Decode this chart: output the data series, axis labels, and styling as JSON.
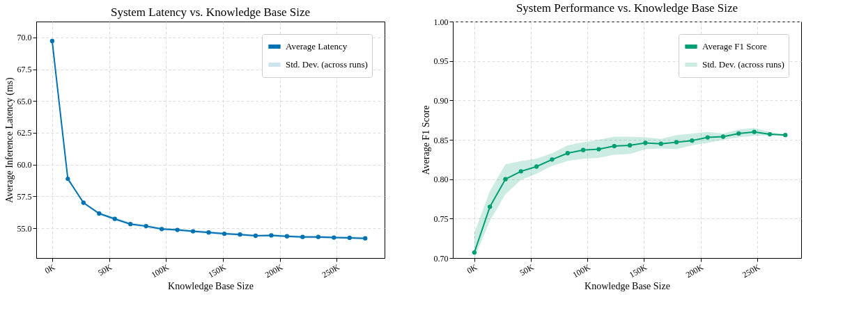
{
  "chart_data": [
    {
      "type": "line",
      "title": "System Latency vs. Knowledge Base Size",
      "xlabel": "Knowledge Base Size",
      "ylabel": "Average Inference Latency (ms)",
      "x": [
        0,
        13750,
        27500,
        41250,
        55000,
        68750,
        82500,
        96250,
        110000,
        123750,
        137500,
        151250,
        165000,
        178750,
        192500,
        206250,
        220000,
        233750,
        247500,
        261250,
        275000
      ],
      "series": [
        {
          "name": "Average Latency",
          "color": "#0072b2",
          "values": [
            69.72,
            58.88,
            57.0,
            56.15,
            55.73,
            55.32,
            55.16,
            54.93,
            54.86,
            54.75,
            54.66,
            54.56,
            54.5,
            54.4,
            54.43,
            54.36,
            54.31,
            54.31,
            54.26,
            54.24,
            54.2
          ],
          "lower": [
            69.65,
            58.8,
            56.9,
            56.05,
            55.6,
            55.22,
            55.05,
            54.83,
            54.76,
            54.65,
            54.55,
            54.46,
            54.4,
            54.32,
            54.33,
            54.27,
            54.2,
            54.21,
            54.15,
            54.14,
            54.08
          ],
          "upper": [
            69.79,
            58.96,
            57.1,
            56.25,
            55.86,
            55.42,
            55.27,
            55.03,
            54.96,
            54.85,
            54.77,
            54.66,
            54.6,
            54.48,
            54.53,
            54.45,
            54.42,
            54.41,
            54.37,
            54.34,
            54.32
          ]
        }
      ],
      "xlim": [
        -14000,
        292000
      ],
      "ylim": [
        52.65,
        71.25
      ],
      "xticks": [
        {
          "value": 0,
          "label": "0K"
        },
        {
          "value": 50000,
          "label": "50K"
        },
        {
          "value": 100000,
          "label": "100K"
        },
        {
          "value": 150000,
          "label": "150K"
        },
        {
          "value": 200000,
          "label": "200K"
        },
        {
          "value": 250000,
          "label": "250K"
        }
      ],
      "yticks": [
        {
          "value": 55,
          "label": "55.0"
        },
        {
          "value": 57.5,
          "label": "57.5"
        },
        {
          "value": 60,
          "label": "60.0"
        },
        {
          "value": 62.5,
          "label": "62.5"
        },
        {
          "value": 65,
          "label": "65.0"
        },
        {
          "value": 67.5,
          "label": "67.5"
        },
        {
          "value": 70,
          "label": "70.0"
        }
      ],
      "annotations": [
        "Std. Dev. (across runs)"
      ],
      "grid": true,
      "legend": "top right",
      "marker": "circle",
      "line_style": "solid"
    },
    {
      "type": "line",
      "title": "System Performance vs. Knowledge Base Size",
      "xlabel": "Knowledge Base Size",
      "ylabel": "Average F1 Score",
      "x": [
        0,
        13750,
        27500,
        41250,
        55000,
        68750,
        82500,
        96250,
        110000,
        123750,
        137500,
        151250,
        165000,
        178750,
        192500,
        206250,
        220000,
        233750,
        247500,
        261250,
        275000
      ],
      "series": [
        {
          "name": "Average F1 Score",
          "color": "#009e73",
          "values": [
            0.707,
            0.765,
            0.8,
            0.81,
            0.816,
            0.825,
            0.833,
            0.837,
            0.838,
            0.842,
            0.843,
            0.846,
            0.845,
            0.847,
            0.849,
            0.853,
            0.854,
            0.858,
            0.86,
            0.857,
            0.856
          ],
          "lower": [
            0.7,
            0.747,
            0.781,
            0.799,
            0.807,
            0.817,
            0.823,
            0.826,
            0.827,
            0.831,
            0.832,
            0.838,
            0.839,
            0.838,
            0.843,
            0.846,
            0.85,
            0.853,
            0.855,
            0.856,
            0.856
          ],
          "upper": [
            0.732,
            0.785,
            0.819,
            0.823,
            0.826,
            0.833,
            0.843,
            0.847,
            0.85,
            0.854,
            0.854,
            0.853,
            0.851,
            0.856,
            0.858,
            0.86,
            0.858,
            0.863,
            0.865,
            0.86,
            0.857
          ]
        }
      ],
      "xlim": [
        -19000,
        289000
      ],
      "ylim": [
        0.7,
        1.0
      ],
      "xticks": [
        {
          "value": 0,
          "label": "0K"
        },
        {
          "value": 50000,
          "label": "50K"
        },
        {
          "value": 100000,
          "label": "100K"
        },
        {
          "value": 150000,
          "label": "150K"
        },
        {
          "value": 200000,
          "label": "200K"
        },
        {
          "value": 250000,
          "label": "250K"
        }
      ],
      "yticks": [
        {
          "value": 0.7,
          "label": "0.70"
        },
        {
          "value": 0.75,
          "label": "0.75"
        },
        {
          "value": 0.8,
          "label": "0.80"
        },
        {
          "value": 0.85,
          "label": "0.85"
        },
        {
          "value": 0.9,
          "label": "0.90"
        },
        {
          "value": 0.95,
          "label": "0.95"
        },
        {
          "value": 1.0,
          "label": "1.00"
        }
      ],
      "annotations": [
        "Std. Dev. (across runs)"
      ],
      "grid": true,
      "legend": "top right",
      "marker": "circle",
      "line_style": "solid"
    }
  ]
}
